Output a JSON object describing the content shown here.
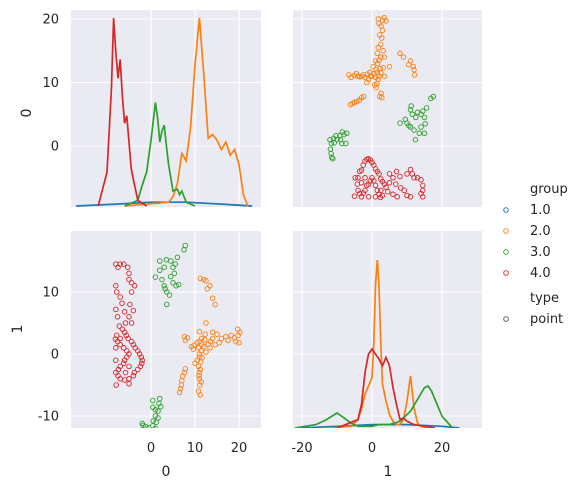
{
  "chart_data": {
    "type": "pairplot",
    "variables": [
      "0",
      "1"
    ],
    "xlabels": [
      "0",
      "1"
    ],
    "ylabels": [
      "0",
      "1"
    ],
    "ticks": {
      "0": [
        0,
        10,
        20
      ],
      "1": [
        -10,
        0,
        10
      ],
      "kde_x_left": [
        0,
        10,
        20
      ],
      "kde_x_right": [
        -20,
        0,
        20
      ]
    },
    "tick_labels": {
      "0": [
        "0",
        "10",
        "20"
      ],
      "1": [
        "-10",
        "0",
        "10"
      ],
      "kde_x_left": [
        "0",
        "10",
        "20"
      ],
      "kde_x_right": [
        "-20",
        "0",
        "20"
      ]
    },
    "ranges": {
      "var0": [
        -11,
        21.8
      ],
      "var1": [
        -12,
        20
      ]
    },
    "legend": {
      "group_title": "group",
      "groups": [
        {
          "label": "1.0",
          "color": "#1f77b4"
        },
        {
          "label": "2.0",
          "color": "#ff7f0e"
        },
        {
          "label": "3.0",
          "color": "#2ca02c"
        },
        {
          "label": "4.0",
          "color": "#d62728"
        }
      ],
      "type_title": "type",
      "types": [
        {
          "label": "point",
          "color": "#555555"
        }
      ],
      "placement": "right"
    },
    "diag_0_kde": [
      {
        "group": "1.0",
        "x": [
          -17,
          -8,
          0,
          8,
          16,
          23
        ],
        "y": [
          0,
          0.01,
          0.02,
          0.02,
          0.01,
          0
        ]
      },
      {
        "group": "2.0",
        "x": [
          -6,
          4,
          5,
          6,
          7,
          8,
          9,
          10,
          11,
          12,
          13,
          14,
          15,
          16,
          17,
          18,
          19,
          20,
          21,
          22
        ],
        "y": [
          0,
          0.02,
          0.05,
          0.12,
          0.28,
          0.24,
          0.42,
          0.75,
          1.0,
          0.7,
          0.36,
          0.38,
          0.35,
          0.3,
          0.34,
          0.27,
          0.3,
          0.22,
          0.06,
          0
        ]
      },
      {
        "group": "3.0",
        "x": [
          -6,
          -3,
          -2,
          -1,
          0,
          0.5,
          1,
          1.5,
          2,
          2.5,
          3,
          3.5,
          4,
          5,
          6,
          6.5,
          7,
          8,
          10
        ],
        "y": [
          0,
          0.03,
          0.11,
          0.18,
          0.35,
          0.45,
          0.55,
          0.47,
          0.34,
          0.4,
          0.43,
          0.32,
          0.22,
          0.08,
          0.09,
          0.06,
          0.08,
          0.02,
          0
        ]
      },
      {
        "group": "4.0",
        "x": [
          -12,
          -10,
          -9,
          -8.5,
          -8,
          -7.5,
          -7,
          -6.5,
          -6,
          -5.5,
          -5,
          -4.5,
          -4,
          -3,
          -1
        ],
        "y": [
          0,
          0.18,
          0.62,
          1.0,
          0.82,
          0.68,
          0.78,
          0.58,
          0.44,
          0.48,
          0.34,
          0.2,
          0.14,
          0.03,
          0
        ]
      }
    ],
    "diag_1_kde": [
      {
        "group": "1.0",
        "x": [
          -20,
          -10,
          0,
          10,
          20,
          25
        ],
        "y": [
          0,
          0.01,
          0.02,
          0.02,
          0.01,
          0
        ]
      },
      {
        "group": "2.0",
        "x": [
          -12,
          -6,
          -4,
          -3,
          -2,
          -1,
          0,
          0.5,
          1,
          1.5,
          2,
          2.5,
          3,
          4,
          5,
          6,
          7,
          8,
          9,
          10,
          11,
          12,
          13,
          14,
          16,
          18
        ],
        "y": [
          0,
          0.01,
          0.05,
          0.11,
          0.2,
          0.25,
          0.3,
          0.5,
          0.85,
          1.0,
          0.85,
          0.5,
          0.26,
          0.16,
          0.08,
          0.04,
          0.02,
          0.02,
          0.05,
          0.16,
          0.31,
          0.12,
          0.03,
          0.01,
          0,
          0
        ]
      },
      {
        "group": "3.0",
        "x": [
          -22,
          -16,
          -13,
          -10,
          -8,
          -6,
          -4,
          -2,
          0,
          2,
          5,
          8,
          11,
          13,
          15,
          16,
          17,
          18,
          20,
          23
        ],
        "y": [
          0,
          0.02,
          0.05,
          0.09,
          0.06,
          0.03,
          0.01,
          0.01,
          0.01,
          0.02,
          0.02,
          0.04,
          0.1,
          0.17,
          0.24,
          0.25,
          0.22,
          0.17,
          0.07,
          0
        ]
      },
      {
        "group": "4.0",
        "x": [
          -10,
          -4,
          -3,
          -2,
          -1,
          0,
          1,
          2,
          3,
          4,
          5,
          6,
          7,
          8,
          9,
          10,
          12,
          15,
          18
        ],
        "y": [
          0,
          0.05,
          0.14,
          0.33,
          0.44,
          0.47,
          0.44,
          0.41,
          0.37,
          0.42,
          0.37,
          0.24,
          0.14,
          0.05,
          0.06,
          0.04,
          0.02,
          0.01,
          0
        ]
      }
    ],
    "scatter_points": {
      "2.0": [
        [
          -1.5,
          10
        ],
        [
          -1.0,
          10.5
        ],
        [
          -0.5,
          11
        ],
        [
          0.0,
          11
        ],
        [
          0.5,
          11.4
        ],
        [
          1.0,
          10.8
        ],
        [
          0.5,
          11.4
        ],
        [
          1.5,
          11.6
        ],
        [
          1.8,
          10.5
        ],
        [
          2.5,
          11.5
        ],
        [
          2.0,
          11.0
        ],
        [
          2.3,
          12.2
        ],
        [
          1.2,
          12.0
        ],
        [
          1.6,
          13.0
        ],
        [
          2.0,
          13.5
        ],
        [
          2.5,
          14.0
        ],
        [
          1.5,
          14.6
        ],
        [
          1.8,
          15.5
        ],
        [
          2.5,
          16.0
        ],
        [
          2.8,
          17.0
        ],
        [
          2.2,
          17.5
        ],
        [
          3.0,
          18.2
        ],
        [
          2.6,
          18.9
        ],
        [
          2.0,
          19.3
        ],
        [
          3.0,
          19.8
        ],
        [
          3.5,
          20.2
        ],
        [
          1.8,
          20.0
        ],
        [
          4.0,
          19.7
        ],
        [
          3.2,
          15.0
        ],
        [
          3.5,
          14.0
        ],
        [
          1.0,
          13.4
        ],
        [
          0.3,
          12.5
        ],
        [
          -0.6,
          11.6
        ],
        [
          -1.3,
          11.3
        ],
        [
          -2.0,
          10.8
        ],
        [
          -2.5,
          11.2
        ],
        [
          -3.0,
          11.0
        ],
        [
          -3.5,
          10.9
        ],
        [
          -4.5,
          11.4
        ],
        [
          -5.0,
          11.1
        ],
        [
          -4.0,
          11.0
        ],
        [
          -6.0,
          10.8
        ],
        [
          -6.6,
          11.2
        ],
        [
          -3.6,
          7.2
        ],
        [
          -3.0,
          7.6
        ],
        [
          -4.3,
          7.0
        ],
        [
          -5.0,
          6.9
        ],
        [
          -5.6,
          6.7
        ],
        [
          -6.2,
          6.5
        ],
        [
          -2.4,
          7.8
        ],
        [
          0.8,
          9.6
        ],
        [
          1.4,
          9.8
        ],
        [
          1.2,
          9.2
        ],
        [
          2.6,
          8.3
        ],
        [
          2.2,
          7.8
        ],
        [
          2.8,
          7.6
        ],
        [
          3.6,
          11.0
        ],
        [
          3.2,
          12.3
        ],
        [
          5.0,
          12.5
        ],
        [
          8.0,
          14.6
        ],
        [
          9.0,
          14.0
        ],
        [
          11.0,
          13.4
        ],
        [
          10.5,
          12.8
        ],
        [
          12.0,
          12.0
        ],
        [
          12.2,
          11.2
        ],
        [
          11.8,
          12.5
        ]
      ],
      "3.0": [
        [
          -12.0,
          1.0
        ],
        [
          -11.0,
          1.2
        ],
        [
          -10.3,
          1.6
        ],
        [
          -10.0,
          1.0
        ],
        [
          -9.2,
          1.6
        ],
        [
          -8.5,
          2.2
        ],
        [
          -8.0,
          1.8
        ],
        [
          -7.2,
          2.0
        ],
        [
          -10.8,
          0.5
        ],
        [
          -11.6,
          0.4
        ],
        [
          -11.9,
          -0.5
        ],
        [
          -11.7,
          -1.2
        ],
        [
          -11.5,
          -1.8
        ],
        [
          -11.2,
          -2.0
        ],
        [
          -9.0,
          1.0
        ],
        [
          -8.6,
          0.4
        ],
        [
          -7.5,
          0.4
        ],
        [
          12.0,
          2.5
        ],
        [
          11.0,
          3.0
        ],
        [
          10.0,
          3.6
        ],
        [
          9.5,
          4.2
        ],
        [
          8.0,
          3.6
        ],
        [
          12.5,
          4.5
        ],
        [
          13.0,
          5.3
        ],
        [
          14.0,
          5.0
        ],
        [
          14.5,
          5.5
        ],
        [
          15.0,
          4.5
        ],
        [
          15.2,
          3.5
        ],
        [
          14.0,
          3.0
        ],
        [
          13.5,
          2.0
        ],
        [
          11.5,
          5.0
        ],
        [
          11.0,
          5.7
        ],
        [
          11.2,
          6.3
        ],
        [
          12.4,
          1.0
        ],
        [
          15.6,
          6.0
        ],
        [
          16.8,
          7.5
        ],
        [
          17.5,
          7.8
        ],
        [
          10.5,
          3.2
        ],
        [
          15.0,
          2.0
        ]
      ],
      "4.0": [
        [
          -4.0,
          -5.0
        ],
        [
          -3.5,
          -4.0
        ],
        [
          -3.0,
          -3.8
        ],
        [
          -2.5,
          -3.0
        ],
        [
          -2.0,
          -2.4
        ],
        [
          -1.5,
          -2.1
        ],
        [
          -1.0,
          -2.0
        ],
        [
          -0.5,
          -2.2
        ],
        [
          0.0,
          -2.6
        ],
        [
          0.5,
          -3.0
        ],
        [
          1.0,
          -3.6
        ],
        [
          1.5,
          -4.0
        ],
        [
          2.0,
          -4.4
        ],
        [
          2.5,
          -5.2
        ],
        [
          3.0,
          -5.6
        ],
        [
          3.5,
          -6.0
        ],
        [
          4.0,
          -6.5
        ],
        [
          4.5,
          -7.2
        ],
        [
          -4.2,
          -6.0
        ],
        [
          -4.0,
          -7.0
        ],
        [
          -3.5,
          -7.5
        ],
        [
          -3.0,
          -8.0
        ],
        [
          -2.5,
          -7.4
        ],
        [
          -2.0,
          -7.0
        ],
        [
          -1.5,
          -6.2
        ],
        [
          -1.0,
          -6.0
        ],
        [
          -0.5,
          -5.5
        ],
        [
          0.0,
          -5.0
        ],
        [
          0.5,
          -5.5
        ],
        [
          1.0,
          -6.2
        ],
        [
          1.5,
          -7.0
        ],
        [
          2.0,
          -7.6
        ],
        [
          2.5,
          -7.0
        ],
        [
          3.0,
          -7.8
        ],
        [
          -5.0,
          -7.9
        ],
        [
          -4.8,
          -5.0
        ],
        [
          -3.0,
          -5.8
        ],
        [
          1.0,
          -8.0
        ],
        [
          -1.0,
          -8.0
        ],
        [
          -2.0,
          -5.0
        ],
        [
          5.0,
          -4.4
        ],
        [
          6.0,
          -5.0
        ],
        [
          7.0,
          -4.0
        ],
        [
          8.0,
          -4.8
        ],
        [
          10.0,
          -4.4
        ],
        [
          11.0,
          -3.7
        ],
        [
          11.5,
          -4.4
        ],
        [
          12.0,
          -5.0
        ],
        [
          13.0,
          -5.0
        ],
        [
          14.0,
          -5.3
        ],
        [
          14.5,
          -6.2
        ],
        [
          14.5,
          -7.0
        ],
        [
          14.0,
          -7.5
        ],
        [
          14.5,
          -8.0
        ],
        [
          5.0,
          -5.8
        ],
        [
          6.8,
          -6.0
        ],
        [
          8.2,
          -6.6
        ],
        [
          9.2,
          -7.0
        ],
        [
          10.0,
          -7.8
        ],
        [
          11.0,
          -8.0
        ],
        [
          6.0,
          -7.6
        ],
        [
          7.2,
          -8.0
        ],
        [
          2.4,
          -8.1
        ]
      ]
    }
  }
}
